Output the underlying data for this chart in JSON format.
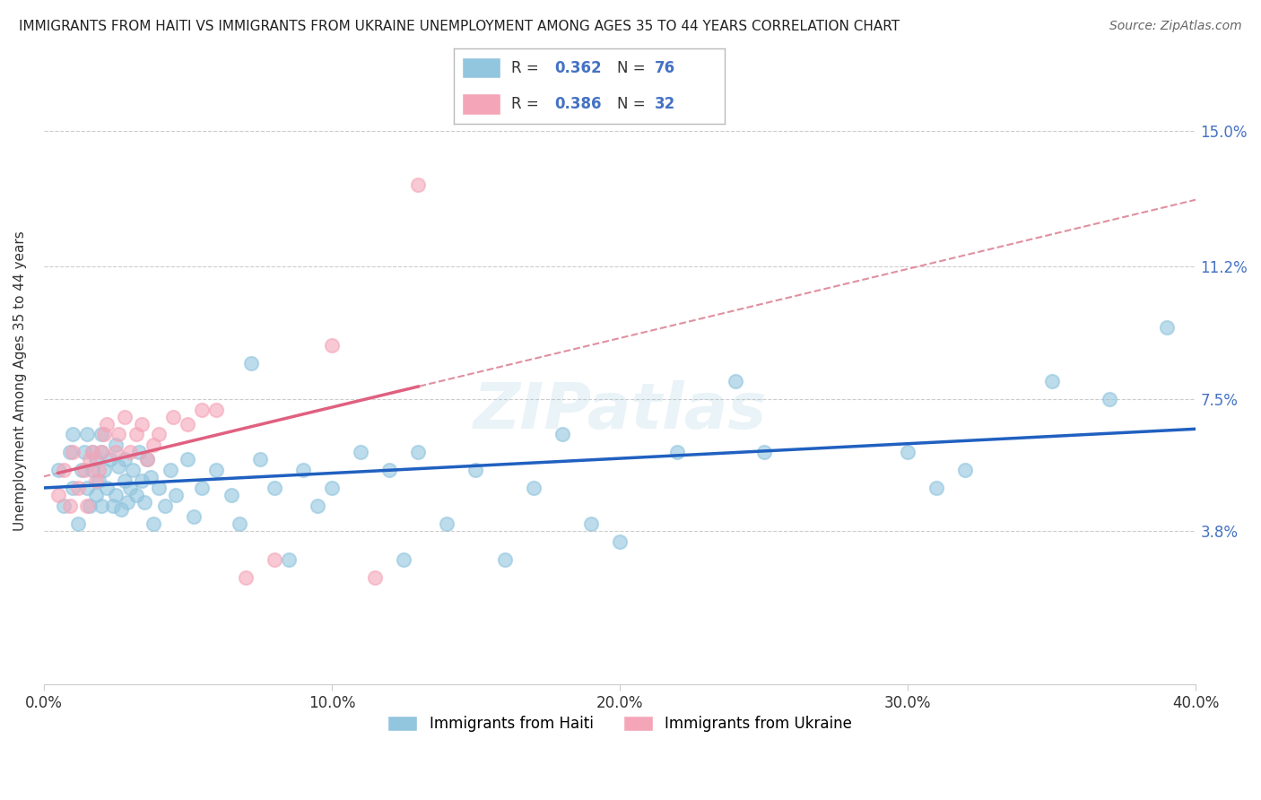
{
  "title": "IMMIGRANTS FROM HAITI VS IMMIGRANTS FROM UKRAINE UNEMPLOYMENT AMONG AGES 35 TO 44 YEARS CORRELATION CHART",
  "source": "Source: ZipAtlas.com",
  "ylabel": "Unemployment Among Ages 35 to 44 years",
  "xlim": [
    0.0,
    0.4
  ],
  "ylim": [
    -0.005,
    0.165
  ],
  "yticks": [
    0.038,
    0.075,
    0.112,
    0.15
  ],
  "ytick_labels": [
    "3.8%",
    "7.5%",
    "11.2%",
    "15.0%"
  ],
  "xticks": [
    0.0,
    0.1,
    0.2,
    0.3,
    0.4
  ],
  "xtick_labels": [
    "0.0%",
    "10.0%",
    "20.0%",
    "30.0%",
    "40.0%"
  ],
  "haiti_color": "#92c5de",
  "ukraine_color": "#f4a6b8",
  "haiti_line_color": "#2060c0",
  "ukraine_line_color": "#e06080",
  "dashed_line_color": "#e090a0",
  "haiti_R": 0.362,
  "haiti_N": 76,
  "ukraine_R": 0.386,
  "ukraine_N": 32,
  "legend_haiti": "Immigrants from Haiti",
  "legend_ukraine": "Immigrants from Ukraine",
  "watermark": "ZIPatlas",
  "haiti_x": [
    0.005,
    0.007,
    0.009,
    0.01,
    0.01,
    0.012,
    0.013,
    0.014,
    0.015,
    0.015,
    0.016,
    0.017,
    0.017,
    0.018,
    0.018,
    0.019,
    0.02,
    0.02,
    0.02,
    0.021,
    0.022,
    0.023,
    0.024,
    0.025,
    0.025,
    0.026,
    0.027,
    0.028,
    0.028,
    0.029,
    0.03,
    0.031,
    0.032,
    0.033,
    0.034,
    0.035,
    0.036,
    0.037,
    0.038,
    0.04,
    0.042,
    0.044,
    0.046,
    0.05,
    0.052,
    0.055,
    0.06,
    0.065,
    0.068,
    0.072,
    0.075,
    0.08,
    0.085,
    0.09,
    0.095,
    0.1,
    0.11,
    0.12,
    0.125,
    0.13,
    0.14,
    0.15,
    0.16,
    0.17,
    0.18,
    0.19,
    0.2,
    0.22,
    0.24,
    0.25,
    0.3,
    0.31,
    0.32,
    0.35,
    0.37,
    0.39
  ],
  "haiti_y": [
    0.055,
    0.045,
    0.06,
    0.05,
    0.065,
    0.04,
    0.055,
    0.06,
    0.05,
    0.065,
    0.045,
    0.055,
    0.06,
    0.048,
    0.058,
    0.052,
    0.045,
    0.06,
    0.065,
    0.055,
    0.05,
    0.058,
    0.045,
    0.062,
    0.048,
    0.056,
    0.044,
    0.058,
    0.052,
    0.046,
    0.05,
    0.055,
    0.048,
    0.06,
    0.052,
    0.046,
    0.058,
    0.053,
    0.04,
    0.05,
    0.045,
    0.055,
    0.048,
    0.058,
    0.042,
    0.05,
    0.055,
    0.048,
    0.04,
    0.085,
    0.058,
    0.05,
    0.03,
    0.055,
    0.045,
    0.05,
    0.06,
    0.055,
    0.03,
    0.06,
    0.04,
    0.055,
    0.03,
    0.05,
    0.065,
    0.04,
    0.035,
    0.06,
    0.08,
    0.06,
    0.06,
    0.05,
    0.055,
    0.08,
    0.075,
    0.095
  ],
  "ukraine_x": [
    0.005,
    0.007,
    0.009,
    0.01,
    0.012,
    0.014,
    0.015,
    0.016,
    0.017,
    0.018,
    0.019,
    0.02,
    0.021,
    0.022,
    0.025,
    0.026,
    0.028,
    0.03,
    0.032,
    0.034,
    0.036,
    0.038,
    0.04,
    0.045,
    0.05,
    0.055,
    0.06,
    0.07,
    0.08,
    0.1,
    0.115,
    0.13
  ],
  "ukraine_y": [
    0.048,
    0.055,
    0.045,
    0.06,
    0.05,
    0.055,
    0.045,
    0.058,
    0.06,
    0.052,
    0.055,
    0.06,
    0.065,
    0.068,
    0.06,
    0.065,
    0.07,
    0.06,
    0.065,
    0.068,
    0.058,
    0.062,
    0.065,
    0.07,
    0.068,
    0.072,
    0.072,
    0.025,
    0.03,
    0.09,
    0.025,
    0.135
  ]
}
